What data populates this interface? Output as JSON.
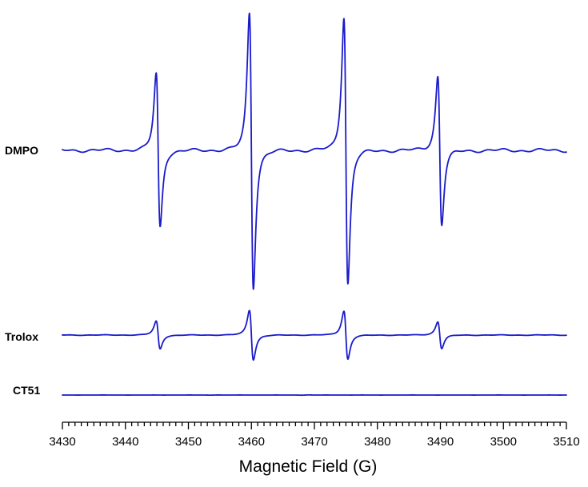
{
  "chart_data": {
    "type": "line",
    "xlabel": "Magnetic Field (G)",
    "ylabel": "",
    "xlim": [
      3430,
      3510
    ],
    "x_ticks": [
      "3430",
      "3440",
      "3450",
      "3460",
      "3470",
      "3480",
      "3490",
      "3500",
      "3510"
    ],
    "minor_tick_step": 1,
    "grid": false,
    "line_color": "#1a1acc",
    "series": [
      {
        "name": "DMPO",
        "amplitude": 1.0,
        "lines": [
          {
            "center": 3445.2,
            "height": 0.56
          },
          {
            "center": 3460.0,
            "height": 1.0
          },
          {
            "center": 3475.0,
            "height": 0.97
          },
          {
            "center": 3489.9,
            "height": 0.54
          }
        ]
      },
      {
        "name": "Trolox",
        "amplitude": 0.18,
        "lines": [
          {
            "center": 3445.2,
            "height": 0.56
          },
          {
            "center": 3460.0,
            "height": 1.0
          },
          {
            "center": 3475.0,
            "height": 0.97
          },
          {
            "center": 3489.9,
            "height": 0.54
          }
        ]
      },
      {
        "name": "CT51",
        "amplitude": 0.02,
        "lines": []
      }
    ]
  }
}
